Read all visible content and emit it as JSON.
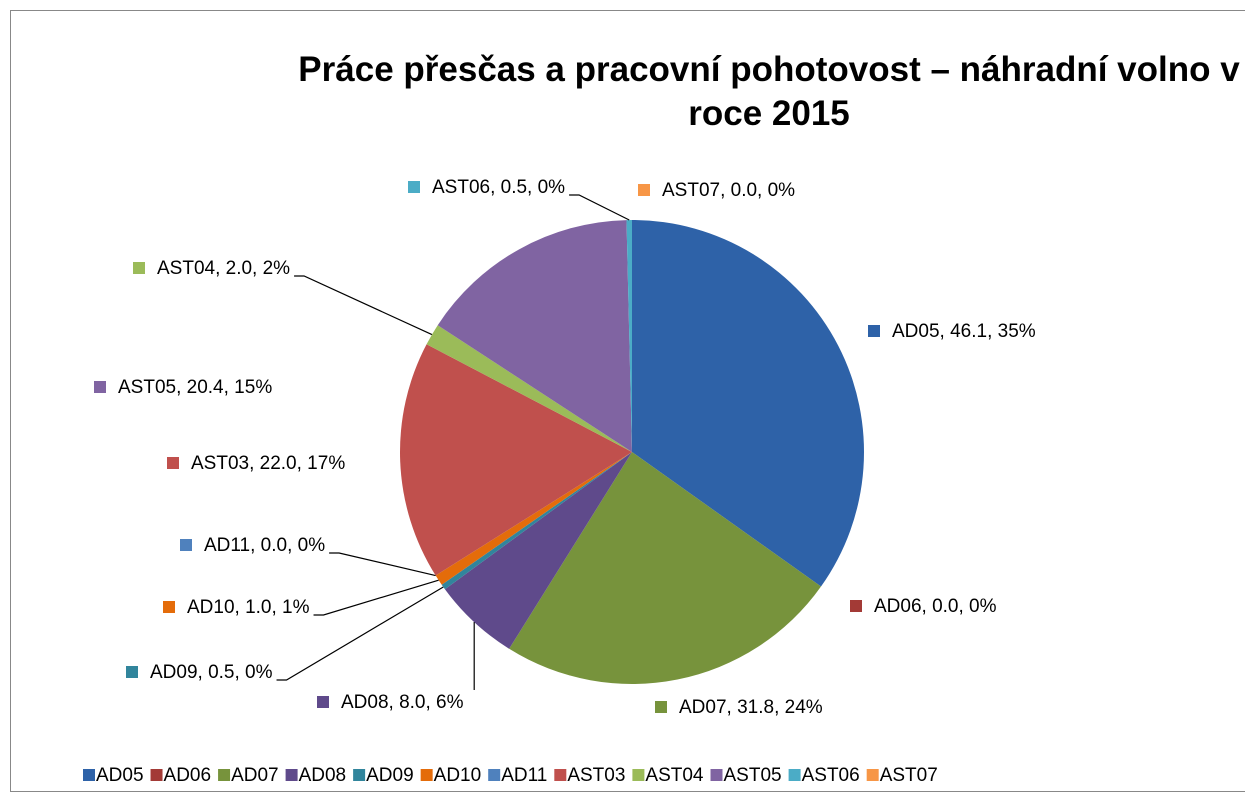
{
  "chart_data": {
    "type": "pie",
    "title": "Práce přesčas a pracovní pohotovost – náhradní volno v roce 2015",
    "categories": [
      "AD05",
      "AD06",
      "AD07",
      "AD08",
      "AD09",
      "AD10",
      "AD11",
      "AST03",
      "AST04",
      "AST05",
      "AST06",
      "AST07"
    ],
    "values": [
      46.1,
      0.0,
      31.8,
      8.0,
      0.5,
      1.0,
      0.0,
      22.0,
      2.0,
      20.4,
      0.5,
      0.0
    ],
    "value_labels": [
      "AD05, 46.1, 35%",
      "AD06, 0.0, 0%",
      "AD07, 31.8, 24%",
      "AD08, 8.0, 6%",
      "AD09, 0.5, 0%",
      "AD10, 1.0, 1%",
      "AD11, 0.0, 0%",
      "AST03, 22.0, 17%",
      "AST04, 2.0, 2%",
      "AST05, 20.4, 15%",
      "AST06, 0.5, 0%",
      "AST07, 0.0, 0%"
    ],
    "colors": [
      "#2e62a8",
      "#a33a36",
      "#77933c",
      "#5f4a8b",
      "#31859c",
      "#e46c0a",
      "#4f81bd",
      "#c0504d",
      "#9bbb59",
      "#8064a2",
      "#4bacc6",
      "#f79646"
    ],
    "legend": "bottom"
  }
}
